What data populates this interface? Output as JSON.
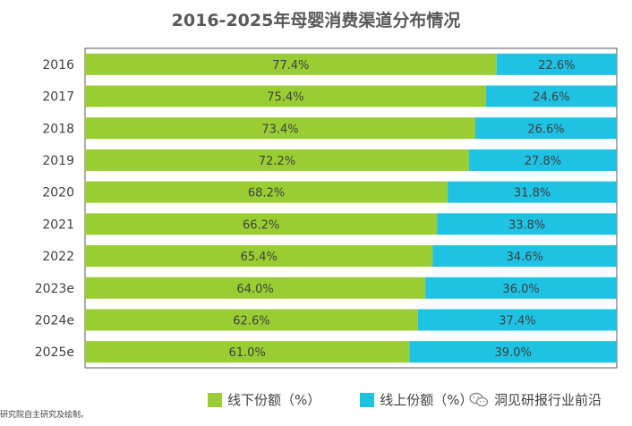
{
  "colors": {
    "offline": "#9ACD32",
    "online": "#1EC2E3",
    "frame": "#595959"
  },
  "chart_data": {
    "type": "bar",
    "orientation": "horizontal",
    "stacked": true,
    "title": "2016-2025年母婴消费渠道分布情况",
    "categories": [
      "2016",
      "2017",
      "2018",
      "2019",
      "2020",
      "2021",
      "2022",
      "2023e",
      "2024e",
      "2025e"
    ],
    "series": [
      {
        "name": "线下份额（%）",
        "values": [
          77.4,
          75.4,
          73.4,
          72.2,
          68.2,
          66.2,
          65.4,
          64.0,
          62.6,
          61.0
        ]
      },
      {
        "name": "线上份额（%）",
        "values": [
          22.6,
          24.6,
          26.6,
          27.8,
          31.8,
          33.8,
          34.6,
          36.0,
          37.4,
          39.0
        ]
      }
    ],
    "value_labels": [
      [
        "77.4%",
        "75.4%",
        "73.4%",
        "72.2%",
        "68.2%",
        "66.2%",
        "65.4%",
        "64.0%",
        "62.6%",
        "61.0%"
      ],
      [
        "22.6%",
        "24.6%",
        "26.6%",
        "27.8%",
        "31.8%",
        "33.8%",
        "34.6%",
        "36.0%",
        "37.4%",
        "39.0%"
      ]
    ],
    "xlim": [
      0,
      100
    ],
    "legend_position": "bottom"
  },
  "watermark": {
    "text": "洞见研报行业前沿",
    "icon": "wechat-icon"
  },
  "source_note": "研究院自主研究及绘制。"
}
